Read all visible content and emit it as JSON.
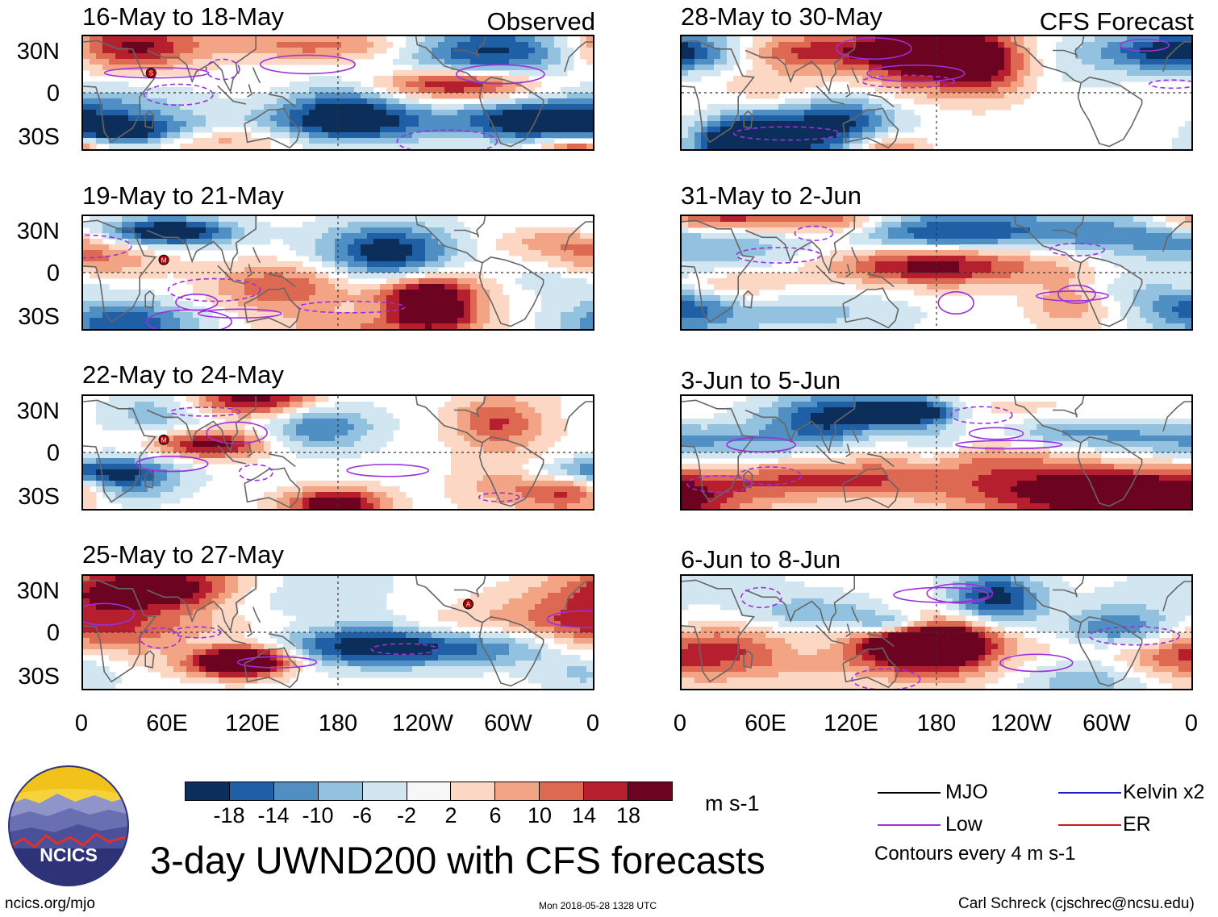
{
  "observed_label": "Observed",
  "forecast_label": "CFS Forecast",
  "panels_left": [
    {
      "title": "16-May to 18-May",
      "markers": [
        {
          "label": "S",
          "lon": 48,
          "lat": 14
        }
      ]
    },
    {
      "title": "19-May to 21-May",
      "markers": [
        {
          "label": "M",
          "lon": 57,
          "lat": 9
        }
      ]
    },
    {
      "title": "22-May to 24-May",
      "markers": [
        {
          "label": "M",
          "lon": 57,
          "lat": 9
        }
      ]
    },
    {
      "title": "25-May to 27-May",
      "markers": [
        {
          "label": "A",
          "lon": 272,
          "lat": 20
        }
      ]
    }
  ],
  "panels_right": [
    {
      "title": "28-May to 30-May",
      "markers": []
    },
    {
      "title": "31-May to 2-Jun",
      "markers": []
    },
    {
      "title": "3-Jun to 5-Jun",
      "markers": []
    },
    {
      "title": "6-Jun to 8-Jun",
      "markers": []
    }
  ],
  "y_ticks": [
    "30N",
    "0",
    "30S"
  ],
  "x_ticks": [
    "0",
    "60E",
    "120E",
    "180",
    "120W",
    "60W",
    "0"
  ],
  "colorbar": {
    "colors": [
      "#0b2f5a",
      "#1f5fa6",
      "#4f8fc4",
      "#93c2e0",
      "#d2e6f2",
      "#f7f7f7",
      "#fbd7c4",
      "#f2a484",
      "#dd6952",
      "#b51f2e",
      "#6b0321"
    ],
    "tick_labels": [
      "-18",
      "-14",
      "-10",
      "-6",
      "-2",
      "2",
      "6",
      "10",
      "14",
      "18"
    ],
    "units": "m s-1"
  },
  "legend": {
    "items": [
      {
        "label": "MJO",
        "color": "#000000"
      },
      {
        "label": "Kelvin x2",
        "color": "#1f1fc8"
      },
      {
        "label": "Low",
        "color": "#9b30e0"
      },
      {
        "label": "ER",
        "color": "#d01818"
      }
    ],
    "contour_note": "Contours every 4 m s-1"
  },
  "main_title": "3-day UWND200 with CFS forecasts",
  "footer": {
    "url": "ncics.org/mjo",
    "timestamp": "Mon 2018-05-28 1328 UTC",
    "author": "Carl Schreck (cjschrec@ncsu.edu)"
  },
  "logo_text": "NCICS",
  "chart_data": {
    "type": "heatmap",
    "variable": "200-hPa zonal wind anomaly (UWND200), 3-day means",
    "units": "m s-1",
    "x_range_deg_east": [
      0,
      360
    ],
    "y_range_deg": [
      -40,
      40
    ],
    "color_levels": [
      -18,
      -14,
      -10,
      -6,
      -2,
      2,
      6,
      10,
      14,
      18
    ],
    "contour_interval": 4,
    "contours": [
      "MJO",
      "Kelvin x2",
      "Low",
      "ER"
    ],
    "panels": [
      {
        "period": "16-May to 18-May",
        "source": "Observed"
      },
      {
        "period": "19-May to 21-May",
        "source": "Observed"
      },
      {
        "period": "22-May to 24-May",
        "source": "Observed"
      },
      {
        "period": "25-May to 27-May",
        "source": "Observed"
      },
      {
        "period": "28-May to 30-May",
        "source": "CFS Forecast"
      },
      {
        "period": "31-May to 2-Jun",
        "source": "CFS Forecast"
      },
      {
        "period": "3-Jun to 5-Jun",
        "source": "CFS Forecast"
      },
      {
        "period": "6-Jun to 8-Jun",
        "source": "CFS Forecast"
      }
    ]
  }
}
